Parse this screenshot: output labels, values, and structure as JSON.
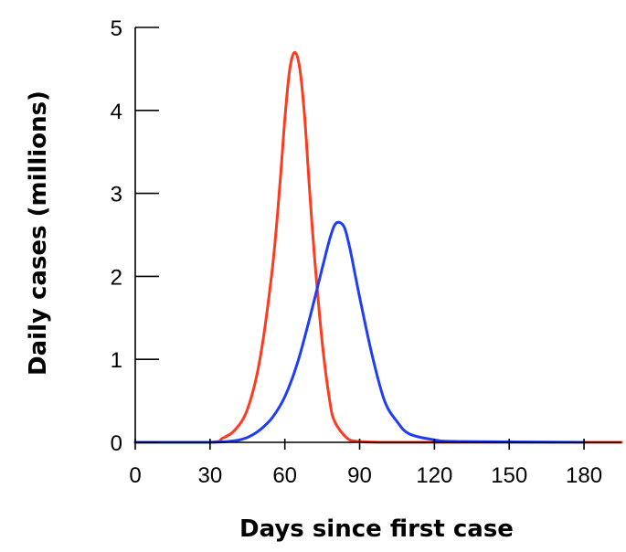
{
  "chart_data": {
    "type": "line",
    "title": "",
    "xlabel": "Days since first case",
    "ylabel": "Daily cases (millions)",
    "xlim": [
      0,
      195
    ],
    "ylim": [
      0,
      5
    ],
    "xticks": [
      0,
      30,
      60,
      90,
      120,
      150,
      180
    ],
    "yticks": [
      0,
      1,
      2,
      3,
      4,
      5
    ],
    "xtick_labels": [
      "0",
      "30",
      "60",
      "90",
      "120",
      "150",
      "180"
    ],
    "ytick_labels": [
      "0",
      "1",
      "2",
      "3",
      "4",
      "5"
    ],
    "grid": false,
    "legend": "none",
    "series": [
      {
        "color": "#ff3b1f",
        "x": [
          0,
          30,
          35,
          40,
          45,
          50,
          55,
          58,
          60,
          62,
          64,
          66,
          68,
          70,
          72,
          75,
          78,
          80,
          85,
          90,
          100,
          130,
          160,
          195
        ],
        "y": [
          0,
          0,
          0.05,
          0.15,
          0.4,
          1.0,
          2.1,
          3.1,
          3.9,
          4.5,
          4.7,
          4.5,
          3.9,
          3.0,
          2.2,
          1.2,
          0.5,
          0.25,
          0.05,
          0.01,
          0,
          0,
          0,
          0
        ]
      },
      {
        "color": "#1f3df5",
        "x": [
          0,
          30,
          40,
          45,
          50,
          55,
          60,
          65,
          70,
          75,
          78,
          80,
          82,
          84,
          86,
          88,
          90,
          95,
          100,
          105,
          110,
          120,
          130,
          180
        ],
        "y": [
          0,
          0,
          0.02,
          0.06,
          0.15,
          0.3,
          0.55,
          0.95,
          1.5,
          2.1,
          2.45,
          2.62,
          2.65,
          2.58,
          2.35,
          2.05,
          1.75,
          1.05,
          0.5,
          0.25,
          0.1,
          0.03,
          0.01,
          0
        ]
      }
    ]
  }
}
